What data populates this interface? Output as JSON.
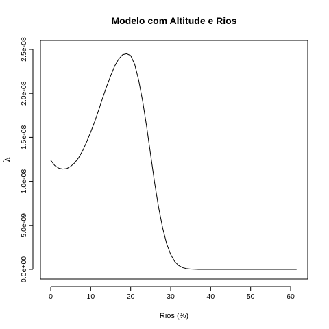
{
  "chart_data": {
    "type": "line",
    "title": "Modelo com Altitude e Rios",
    "xlabel": "Rios (%)",
    "ylabel": "λ",
    "xlim": [
      0,
      62
    ],
    "ylim": [
      0,
      2.5e-08
    ],
    "x_ticks": [
      0,
      10,
      20,
      30,
      40,
      50,
      60
    ],
    "x_tick_labels": [
      "0",
      "10",
      "20",
      "30",
      "40",
      "50",
      "60"
    ],
    "y_ticks": [
      0,
      5e-09,
      1e-08,
      1.5e-08,
      2e-08,
      2.5e-08
    ],
    "y_tick_labels": [
      "0.0e+00",
      "5.0e-09",
      "1.0e-08",
      "1.5e-08",
      "2.0e-08",
      "2.5e-08"
    ],
    "grid": false,
    "series": [
      {
        "x": [
          0,
          1,
          2,
          3,
          4,
          5,
          6,
          7,
          8,
          9,
          10,
          11,
          12,
          13,
          14,
          15,
          16,
          17,
          18,
          19,
          20,
          21,
          22,
          23,
          24,
          25,
          26,
          27,
          28,
          29,
          30,
          31,
          32,
          33,
          34,
          35,
          36,
          37,
          38,
          39,
          40,
          42,
          45,
          50,
          55,
          60,
          61.5
        ],
        "y": [
          1.24e-08,
          1.18e-08,
          1.15e-08,
          1.14e-08,
          1.145e-08,
          1.17e-08,
          1.21e-08,
          1.27e-08,
          1.35e-08,
          1.45e-08,
          1.56e-08,
          1.68e-08,
          1.81e-08,
          1.95e-08,
          2.08e-08,
          2.2e-08,
          2.31e-08,
          2.39e-08,
          2.44e-08,
          2.45e-08,
          2.43e-08,
          2.33e-08,
          2.15e-08,
          1.91e-08,
          1.62e-08,
          1.3e-08,
          9.8e-09,
          7e-09,
          4.7e-09,
          2.9e-09,
          1.7e-09,
          9e-10,
          4.5e-10,
          2e-10,
          9e-11,
          4e-11,
          1.5e-11,
          5e-12,
          2e-12,
          1e-12,
          0,
          0,
          0,
          0,
          0,
          0,
          0
        ]
      }
    ]
  }
}
